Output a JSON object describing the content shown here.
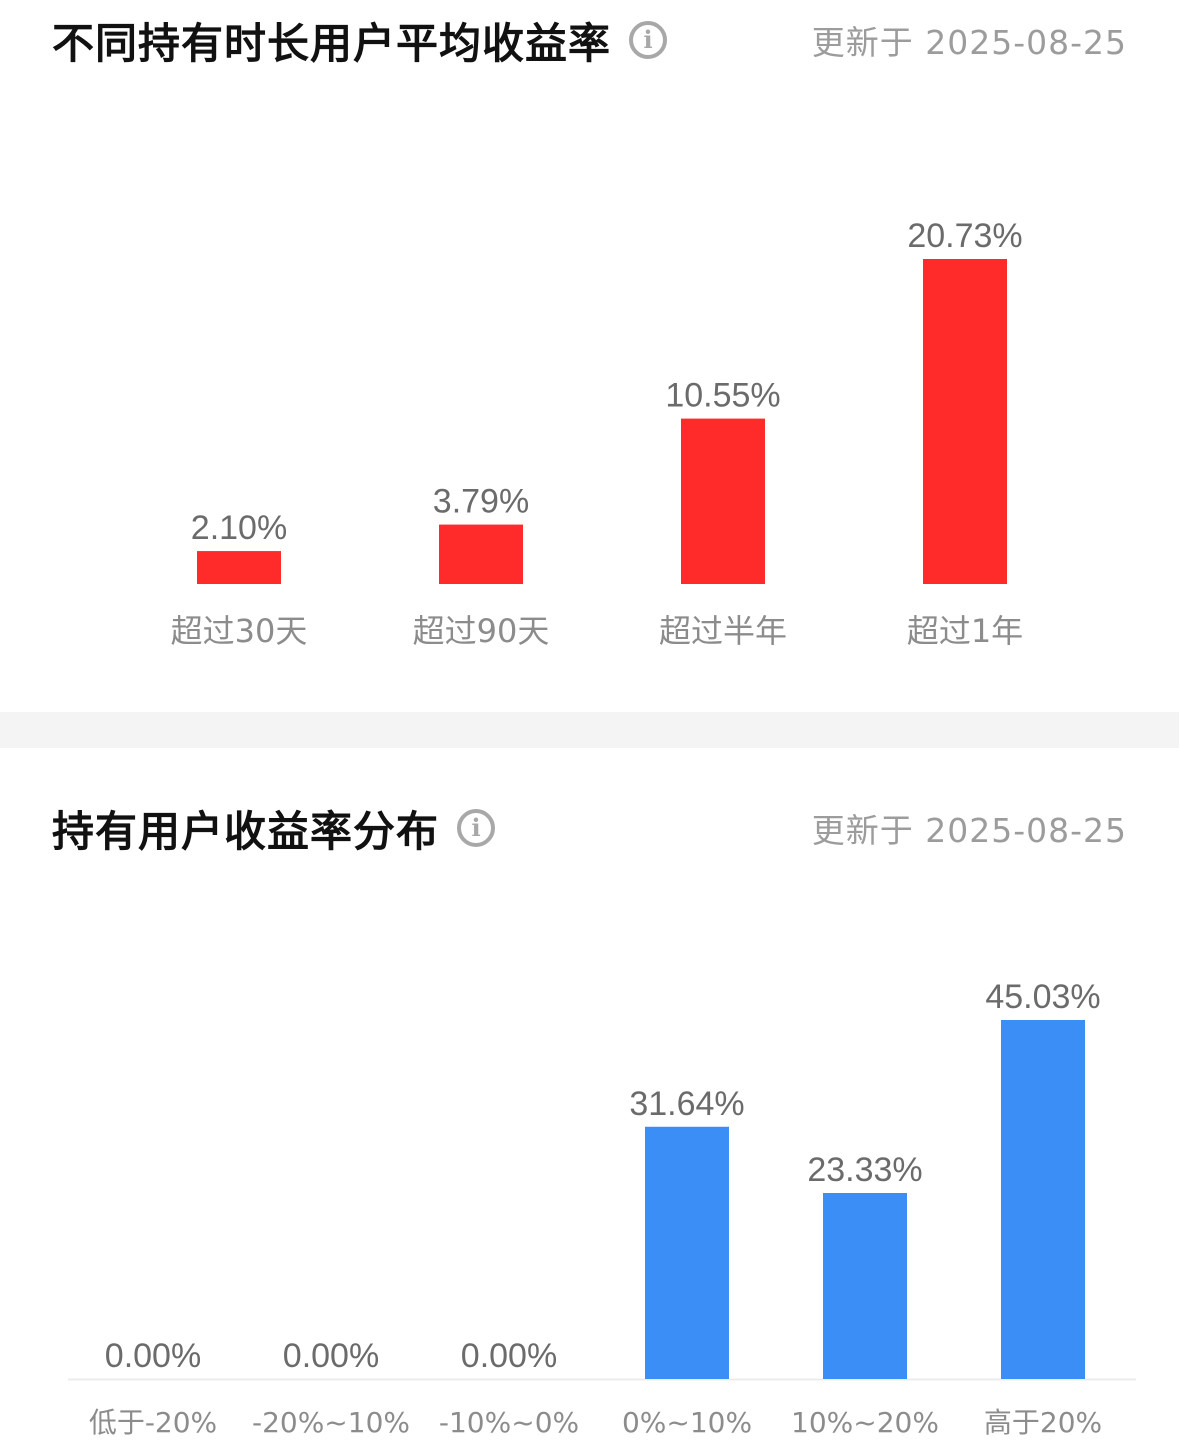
{
  "charts": [
    {
      "title": "不同持有时长用户平均收益率",
      "updated": "更新于 2025-08-25"
    },
    {
      "title": "持有用户收益率分布",
      "updated": "更新于 2025-08-25"
    }
  ],
  "chart_data": [
    {
      "type": "bar",
      "title": "不同持有时长用户平均收益率",
      "categories": [
        "超过30天",
        "超过90天",
        "超过半年",
        "超过1年"
      ],
      "values": [
        2.1,
        3.79,
        10.55,
        20.73
      ],
      "value_labels": [
        "2.10%",
        "3.79%",
        "10.55%",
        "20.73%"
      ],
      "unit": "%",
      "color": "#ff2a2a",
      "grid": false
    },
    {
      "type": "bar",
      "title": "持有用户收益率分布",
      "categories": [
        "低于-20%",
        "-20%~10%",
        "-10%~0%",
        "0%~10%",
        "10%~20%",
        "高于20%"
      ],
      "values": [
        0.0,
        0.0,
        0.0,
        31.64,
        23.33,
        45.03
      ],
      "value_labels": [
        "0.00%",
        "0.00%",
        "0.00%",
        "31.64%",
        "23.33%",
        "45.03%"
      ],
      "unit": "%",
      "color": "#3a8ef6",
      "grid": false
    }
  ]
}
